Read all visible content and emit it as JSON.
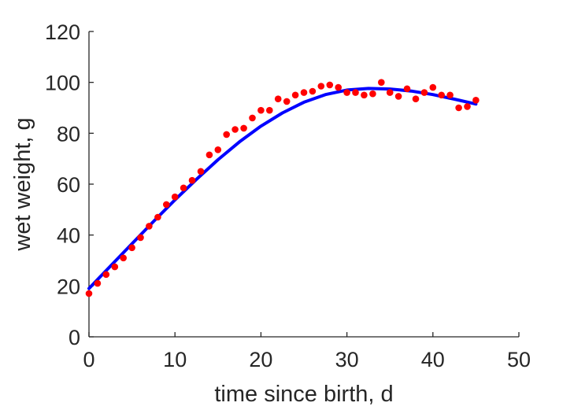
{
  "chart_data": {
    "type": "scatter",
    "xlabel": "time since birth, d",
    "ylabel": "wet weight, g",
    "xlim": [
      0,
      50
    ],
    "ylim": [
      0,
      120
    ],
    "xticks": [
      0,
      10,
      20,
      30,
      40,
      50
    ],
    "yticks": [
      0,
      20,
      40,
      60,
      80,
      100,
      120
    ],
    "grid": false,
    "box": false,
    "series": [
      {
        "kind": "points",
        "color": "#ff0000",
        "x": [
          0,
          1,
          2,
          3,
          4,
          5,
          6,
          7,
          8,
          9,
          10,
          11,
          12,
          13,
          14,
          15,
          16,
          17,
          18,
          19,
          20,
          21,
          22,
          23,
          24,
          25,
          26,
          27,
          28,
          29,
          30,
          31,
          32,
          33,
          34,
          35,
          36,
          37,
          38,
          39,
          40,
          41,
          42,
          43,
          44,
          45
        ],
        "y": [
          17,
          21,
          24.5,
          27.5,
          31,
          35,
          39,
          43.5,
          47,
          52,
          55,
          58.5,
          61.5,
          65,
          71.5,
          73.5,
          79.5,
          81.5,
          82,
          86,
          89,
          89,
          93.5,
          92.5,
          95,
          96,
          96.5,
          98.5,
          99,
          98,
          96,
          96,
          95,
          95.5,
          100,
          96,
          94.5,
          97.5,
          93.5,
          96,
          98,
          95,
          95,
          90,
          90.5,
          93
        ]
      },
      {
        "kind": "fit-line",
        "color": "#0000ff",
        "x": [
          0,
          2.5,
          5,
          7.5,
          10,
          12.5,
          15,
          17.5,
          20,
          22.5,
          25,
          27.5,
          30,
          32.5,
          35,
          37.5,
          40,
          42.5,
          45
        ],
        "y": [
          19,
          27.8,
          36.6,
          45.3,
          53.8,
          61.9,
          69.6,
          76.6,
          82.8,
          88,
          92.2,
          95.2,
          97,
          97.6,
          97.4,
          96.6,
          95.2,
          93.4,
          91.5
        ]
      }
    ]
  }
}
